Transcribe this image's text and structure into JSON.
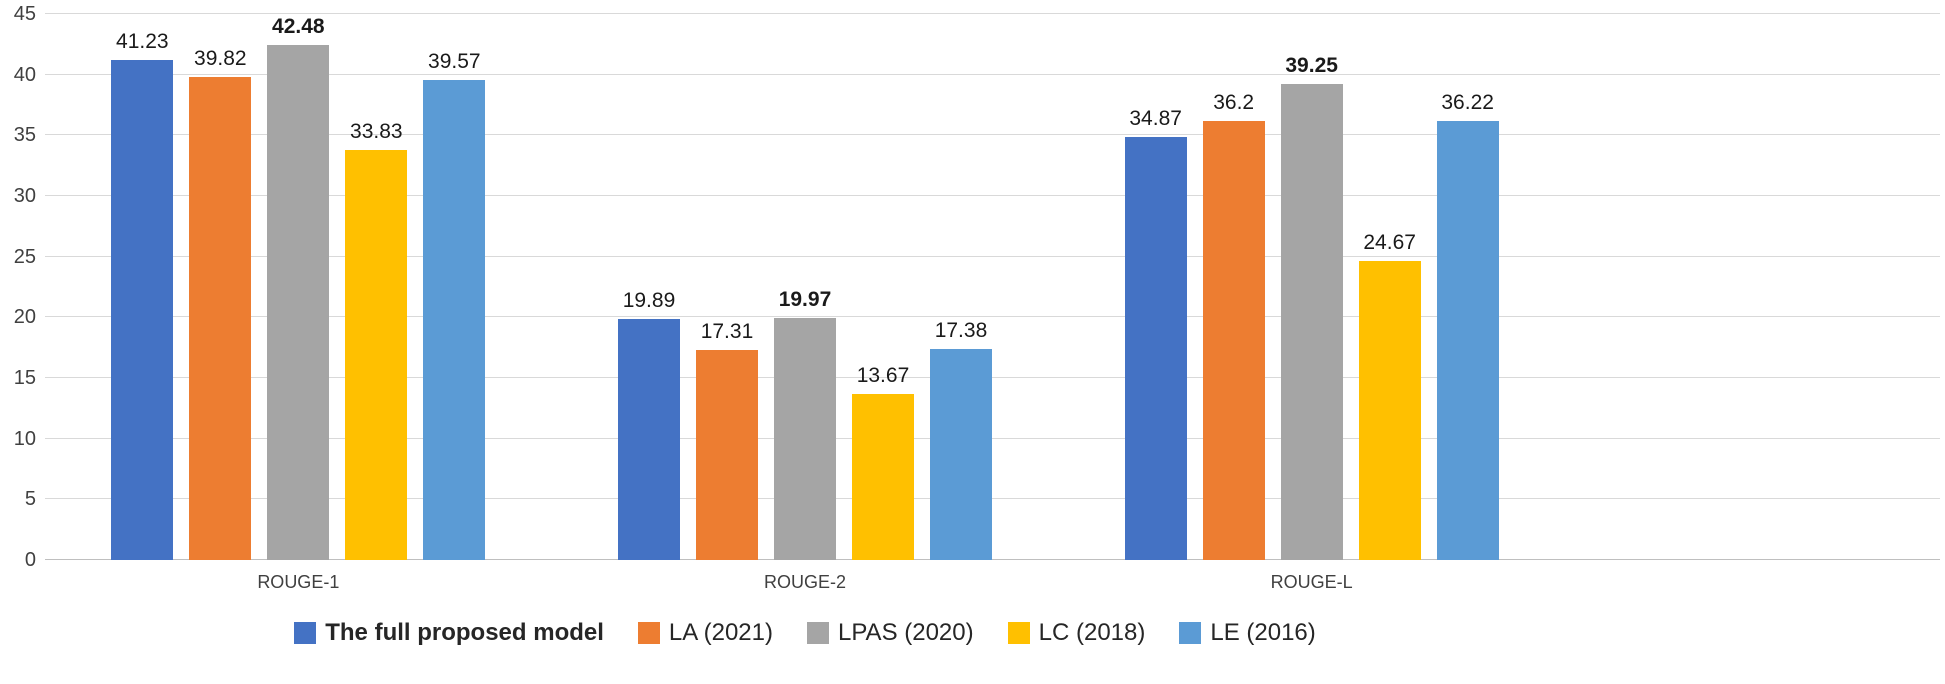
{
  "chart_data": {
    "type": "bar",
    "title": "",
    "xlabel": "",
    "ylabel": "",
    "categories": [
      "ROUGE-1",
      "ROUGE-2",
      "ROUGE-L"
    ],
    "series": [
      {
        "name": "The full proposed model",
        "color": "#4472C4",
        "values": [
          41.23,
          19.89,
          34.87
        ],
        "value_labels": [
          "41.23",
          "19.89",
          "34.87"
        ],
        "bold_value_labels": false,
        "bold_legend_label": true
      },
      {
        "name": "LA (2021)",
        "color": "#ED7D31",
        "values": [
          39.82,
          17.31,
          36.2
        ],
        "value_labels": [
          "39.82",
          "17.31",
          "36.2"
        ],
        "bold_value_labels": false,
        "bold_legend_label": false
      },
      {
        "name": "LPAS (2020)",
        "color": "#A5A5A5",
        "values": [
          42.48,
          19.97,
          39.25
        ],
        "value_labels": [
          "42.48",
          "19.97",
          "39.25"
        ],
        "bold_value_labels": true,
        "bold_legend_label": false
      },
      {
        "name": "LC (2018)",
        "color": "#FFC000",
        "values": [
          33.83,
          13.67,
          24.67
        ],
        "value_labels": [
          "33.83",
          "13.67",
          "24.67"
        ],
        "bold_value_labels": false,
        "bold_legend_label": false
      },
      {
        "name": "LE (2016)",
        "color": "#5B9BD5",
        "values": [
          39.57,
          17.38,
          36.22
        ],
        "value_labels": [
          "39.57",
          "17.38",
          "36.22"
        ],
        "bold_value_labels": false,
        "bold_legend_label": false
      }
    ],
    "ylim": [
      0,
      45
    ],
    "yticks": [
      0,
      5,
      10,
      15,
      20,
      25,
      30,
      35,
      40,
      45
    ],
    "grid": true,
    "gridline_color": "#D9D9D9",
    "axis_line_color": "#BFBFBF",
    "legend_position": "bottom"
  }
}
